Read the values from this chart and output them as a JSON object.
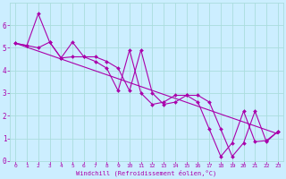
{
  "bg_color": "#cceeff",
  "grid_color": "#aadddd",
  "line_color": "#aa00aa",
  "marker_color": "#aa00aa",
  "xlabel": "Windchill (Refroidissement éolien,°C)",
  "xlabel_color": "#aa00aa",
  "xlim": [
    -0.5,
    23.5
  ],
  "ylim": [
    0,
    7
  ],
  "xticks": [
    0,
    1,
    2,
    3,
    4,
    5,
    6,
    7,
    8,
    9,
    10,
    11,
    12,
    13,
    14,
    15,
    16,
    17,
    18,
    19,
    20,
    21,
    22,
    23
  ],
  "yticks": [
    0,
    1,
    2,
    3,
    4,
    5,
    6
  ],
  "series1_x": [
    0,
    1,
    2,
    3,
    4,
    5,
    6,
    7,
    8,
    9,
    10,
    11,
    12,
    13,
    14,
    15,
    16,
    17,
    18,
    19,
    20,
    21,
    22,
    23
  ],
  "series1_y": [
    5.2,
    5.1,
    5.0,
    5.25,
    4.55,
    4.6,
    4.6,
    4.4,
    4.1,
    3.1,
    4.9,
    3.0,
    2.5,
    2.6,
    2.9,
    2.9,
    2.6,
    1.4,
    0.2,
    0.8,
    2.2,
    0.85,
    0.9,
    1.3
  ],
  "series2_x": [
    0,
    1,
    2,
    3,
    4,
    5,
    6,
    7,
    8,
    9,
    10,
    11,
    12,
    13,
    14,
    15,
    16,
    17,
    18,
    19,
    20,
    21,
    22,
    23
  ],
  "series2_y": [
    5.2,
    5.1,
    6.5,
    5.25,
    4.55,
    5.25,
    4.6,
    4.6,
    4.4,
    4.1,
    3.1,
    4.9,
    3.0,
    2.5,
    2.6,
    2.9,
    2.9,
    2.6,
    1.4,
    0.2,
    0.8,
    2.2,
    0.85,
    1.3
  ],
  "trend_x": [
    0,
    23
  ],
  "trend_y": [
    5.2,
    1.2
  ]
}
